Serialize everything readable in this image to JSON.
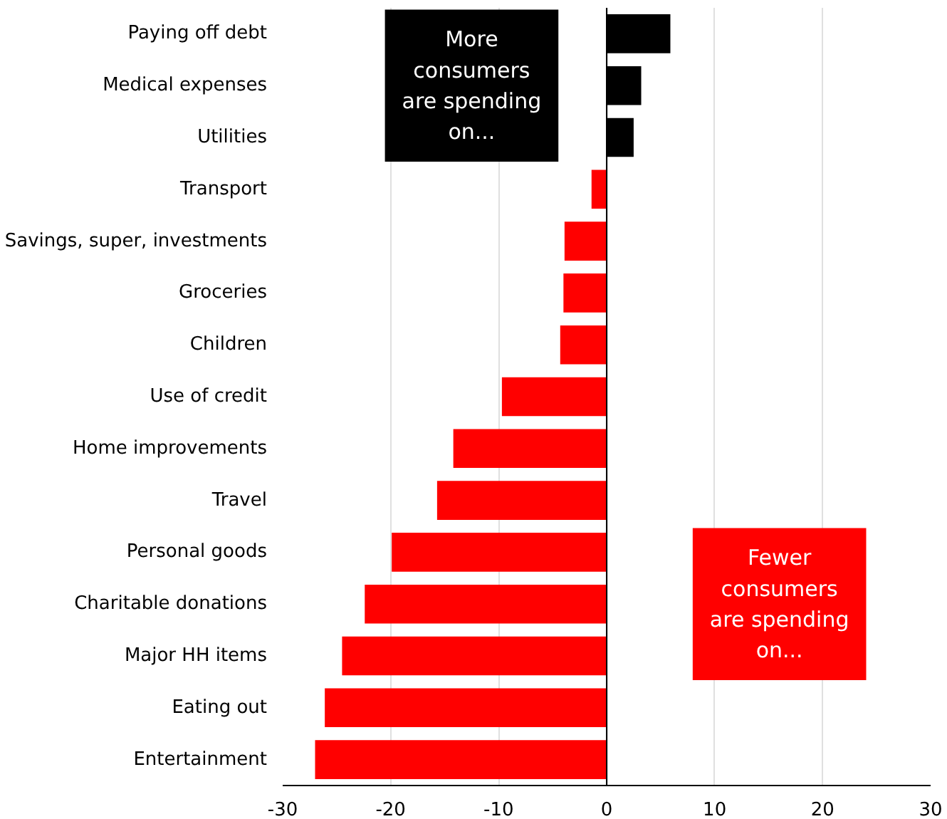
{
  "chart_data": {
    "type": "bar",
    "orientation": "horizontal",
    "categories": [
      "Paying off debt",
      "Medical expenses",
      "Utilities",
      "Transport",
      "Savings, super, investments",
      "Groceries",
      "Children",
      "Use of credit",
      "Home improvements",
      "Travel",
      "Personal goods",
      "Charitable donations",
      "Major HH items",
      "Eating out",
      "Entertainment"
    ],
    "values": [
      5.9,
      3.2,
      2.5,
      -1.4,
      -3.9,
      -4.0,
      -4.3,
      -9.7,
      -14.2,
      -15.7,
      -19.9,
      -22.4,
      -24.5,
      -26.1,
      -27.0
    ],
    "colors": [
      "#000000",
      "#000000",
      "#000000",
      "#ff0000",
      "#ff0000",
      "#ff0000",
      "#ff0000",
      "#ff0000",
      "#ff0000",
      "#ff0000",
      "#ff0000",
      "#ff0000",
      "#ff0000",
      "#ff0000",
      "#ff0000"
    ],
    "xlim": [
      -30,
      30
    ],
    "xticks": [
      -30,
      -20,
      -10,
      0,
      10,
      20,
      30
    ],
    "grid": "x",
    "annotations": [
      "More consumers are spending on...",
      "Fewer consumers are spending on..."
    ]
  }
}
